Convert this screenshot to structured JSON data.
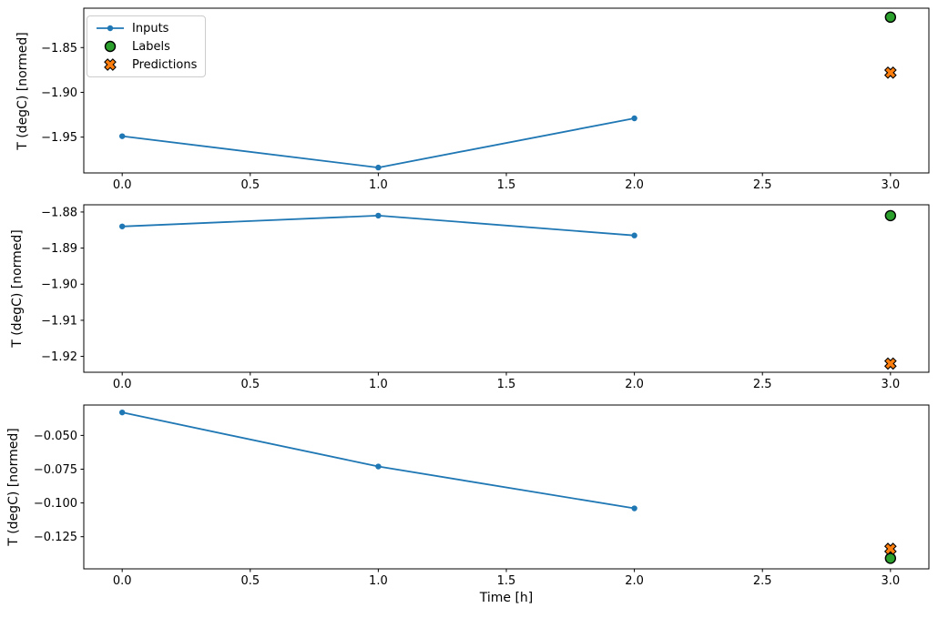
{
  "figure": {
    "background": "#ffffff",
    "axis_color": "#000000",
    "xlabel": "Time [h]"
  },
  "legend": {
    "position": "upper left",
    "border_color": "#cccccc",
    "items": [
      {
        "label": "Inputs",
        "marker": "line-dot",
        "color": "#1f77b4"
      },
      {
        "label": "Labels",
        "marker": "circle",
        "color": "#2ca02c",
        "edge_color": "#000000"
      },
      {
        "label": "Predictions",
        "marker": "X",
        "color": "#ff7f0e",
        "edge_color": "#000000"
      }
    ]
  },
  "chart_data": [
    {
      "type": "line",
      "title": "",
      "xlabel": "",
      "ylabel": "T (degC) [normed]",
      "grid": false,
      "xlim": [
        -0.15,
        3.15
      ],
      "ylim": [
        -1.99,
        -1.806
      ],
      "x_ticks": [
        0.0,
        0.5,
        1.0,
        1.5,
        2.0,
        2.5,
        3.0
      ],
      "x_tick_labels": [
        "0.0",
        "0.5",
        "1.0",
        "1.5",
        "2.0",
        "2.5",
        "3.0"
      ],
      "y_ticks": [
        -1.85,
        -1.9,
        -1.95
      ],
      "y_tick_labels": [
        "−1.85",
        "−1.90",
        "−1.95"
      ],
      "series": [
        {
          "name": "Inputs",
          "kind": "line",
          "marker": "dot",
          "color": "#1f77b4",
          "x": [
            0,
            1,
            2
          ],
          "y": [
            -1.949,
            -1.984,
            -1.929
          ]
        },
        {
          "name": "Labels",
          "kind": "scatter",
          "marker": "circle",
          "color": "#2ca02c",
          "edge_color": "#000000",
          "x": [
            3
          ],
          "y": [
            -1.816
          ]
        },
        {
          "name": "Predictions",
          "kind": "scatter",
          "marker": "X",
          "color": "#ff7f0e",
          "edge_color": "#000000",
          "x": [
            3
          ],
          "y": [
            -1.878
          ]
        }
      ]
    },
    {
      "type": "line",
      "title": "",
      "xlabel": "",
      "ylabel": "T (degC) [normed]",
      "grid": false,
      "xlim": [
        -0.15,
        3.15
      ],
      "ylim": [
        -1.9244,
        -1.878
      ],
      "x_ticks": [
        0.0,
        0.5,
        1.0,
        1.5,
        2.0,
        2.5,
        3.0
      ],
      "x_tick_labels": [
        "0.0",
        "0.5",
        "1.0",
        "1.5",
        "2.0",
        "2.5",
        "3.0"
      ],
      "y_ticks": [
        -1.88,
        -1.89,
        -1.9,
        -1.91,
        -1.92
      ],
      "y_tick_labels": [
        "−1.88",
        "−1.89",
        "−1.90",
        "−1.91",
        "−1.92"
      ],
      "series": [
        {
          "name": "Inputs",
          "kind": "line",
          "marker": "dot",
          "color": "#1f77b4",
          "x": [
            0,
            1,
            2
          ],
          "y": [
            -1.884,
            -1.881,
            -1.8865
          ]
        },
        {
          "name": "Labels",
          "kind": "scatter",
          "marker": "circle",
          "color": "#2ca02c",
          "edge_color": "#000000",
          "x": [
            3
          ],
          "y": [
            -1.881
          ]
        },
        {
          "name": "Predictions",
          "kind": "scatter",
          "marker": "X",
          "color": "#ff7f0e",
          "edge_color": "#000000",
          "x": [
            3
          ],
          "y": [
            -1.922
          ]
        }
      ]
    },
    {
      "type": "line",
      "title": "",
      "xlabel": "Time [h]",
      "ylabel": "T (degC) [normed]",
      "grid": false,
      "xlim": [
        -0.15,
        3.15
      ],
      "ylim": [
        -0.1488,
        -0.0275
      ],
      "x_ticks": [
        0.0,
        0.5,
        1.0,
        1.5,
        2.0,
        2.5,
        3.0
      ],
      "x_tick_labels": [
        "0.0",
        "0.5",
        "1.0",
        "1.5",
        "2.0",
        "2.5",
        "3.0"
      ],
      "y_ticks": [
        -0.05,
        -0.075,
        -0.1,
        -0.125
      ],
      "y_tick_labels": [
        "−0.050",
        "−0.075",
        "−0.100",
        "−0.125"
      ],
      "series": [
        {
          "name": "Inputs",
          "kind": "line",
          "marker": "dot",
          "color": "#1f77b4",
          "x": [
            0,
            1,
            2
          ],
          "y": [
            -0.033,
            -0.073,
            -0.104
          ]
        },
        {
          "name": "Labels",
          "kind": "scatter",
          "marker": "circle",
          "color": "#2ca02c",
          "edge_color": "#000000",
          "x": [
            3
          ],
          "y": [
            -0.141
          ]
        },
        {
          "name": "Predictions",
          "kind": "scatter",
          "marker": "X",
          "color": "#ff7f0e",
          "edge_color": "#000000",
          "x": [
            3
          ],
          "y": [
            -0.134
          ]
        }
      ]
    }
  ]
}
